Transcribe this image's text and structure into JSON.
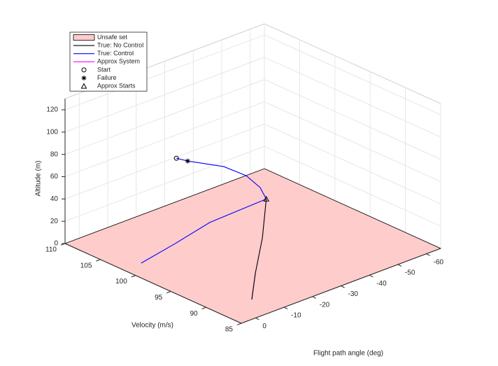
{
  "chart_data": {
    "type": "line3d",
    "xlabel": "Velocity (m/s)",
    "ylabel": "Flight path angle (deg)",
    "zlabel": "Altitude (m)",
    "xlim": [
      85,
      110
    ],
    "ylim": [
      -65,
      5
    ],
    "zlim": [
      0,
      130
    ],
    "xticks": [
      85,
      90,
      95,
      100,
      105,
      110
    ],
    "yticks": [
      -60,
      -50,
      -40,
      -30,
      -20,
      -10,
      0
    ],
    "zticks": [
      0,
      20,
      40,
      60,
      80,
      100,
      120
    ],
    "grid": true,
    "legend": "northwest",
    "regions": [
      {
        "name": "Unsafe set",
        "color": "#ffcccc",
        "z": 0
      }
    ],
    "series": [
      {
        "name": "True: No Control",
        "color": "#000000",
        "x": [
          97.05,
          94.45,
          91.2,
          88.4
        ],
        "y": [
          -33.6,
          -25.8,
          -15.3,
          -7.1
        ],
        "z": [
          40,
          20,
          8,
          0
        ]
      },
      {
        "name": "True: Control",
        "color": "#0000ff",
        "x": [
          107.9,
          106.7,
          103.8,
          101.2,
          98.65,
          97.05,
          100.1,
          101.0,
          101.75
        ],
        "y": [
          -28.9,
          -29.9,
          -35.4,
          -36.8,
          -35.4,
          -33.6,
          -21.3,
          -11.4,
          -1.3
        ],
        "z": [
          50,
          50,
          48,
          46,
          44,
          40,
          22,
          10,
          0
        ]
      },
      {
        "name": "Approx System",
        "color": "#ff00ff",
        "x": [
          91.2,
          88.4
        ],
        "y": [
          -15.3,
          -7.1
        ],
        "z": [
          8,
          0
        ]
      }
    ],
    "markers": [
      {
        "name": "Start",
        "symbol": "circle",
        "x": [
          107.9
        ],
        "y": [
          -28.9
        ],
        "z": [
          50
        ]
      },
      {
        "name": "Failure",
        "symbol": "asterisk",
        "x": [
          106.7
        ],
        "y": [
          -29.9
        ],
        "z": [
          50
        ]
      },
      {
        "name": "Approx Starts",
        "symbol": "triangle",
        "x": [
          97.05
        ],
        "y": [
          -33.6
        ],
        "z": [
          40
        ]
      }
    ]
  }
}
